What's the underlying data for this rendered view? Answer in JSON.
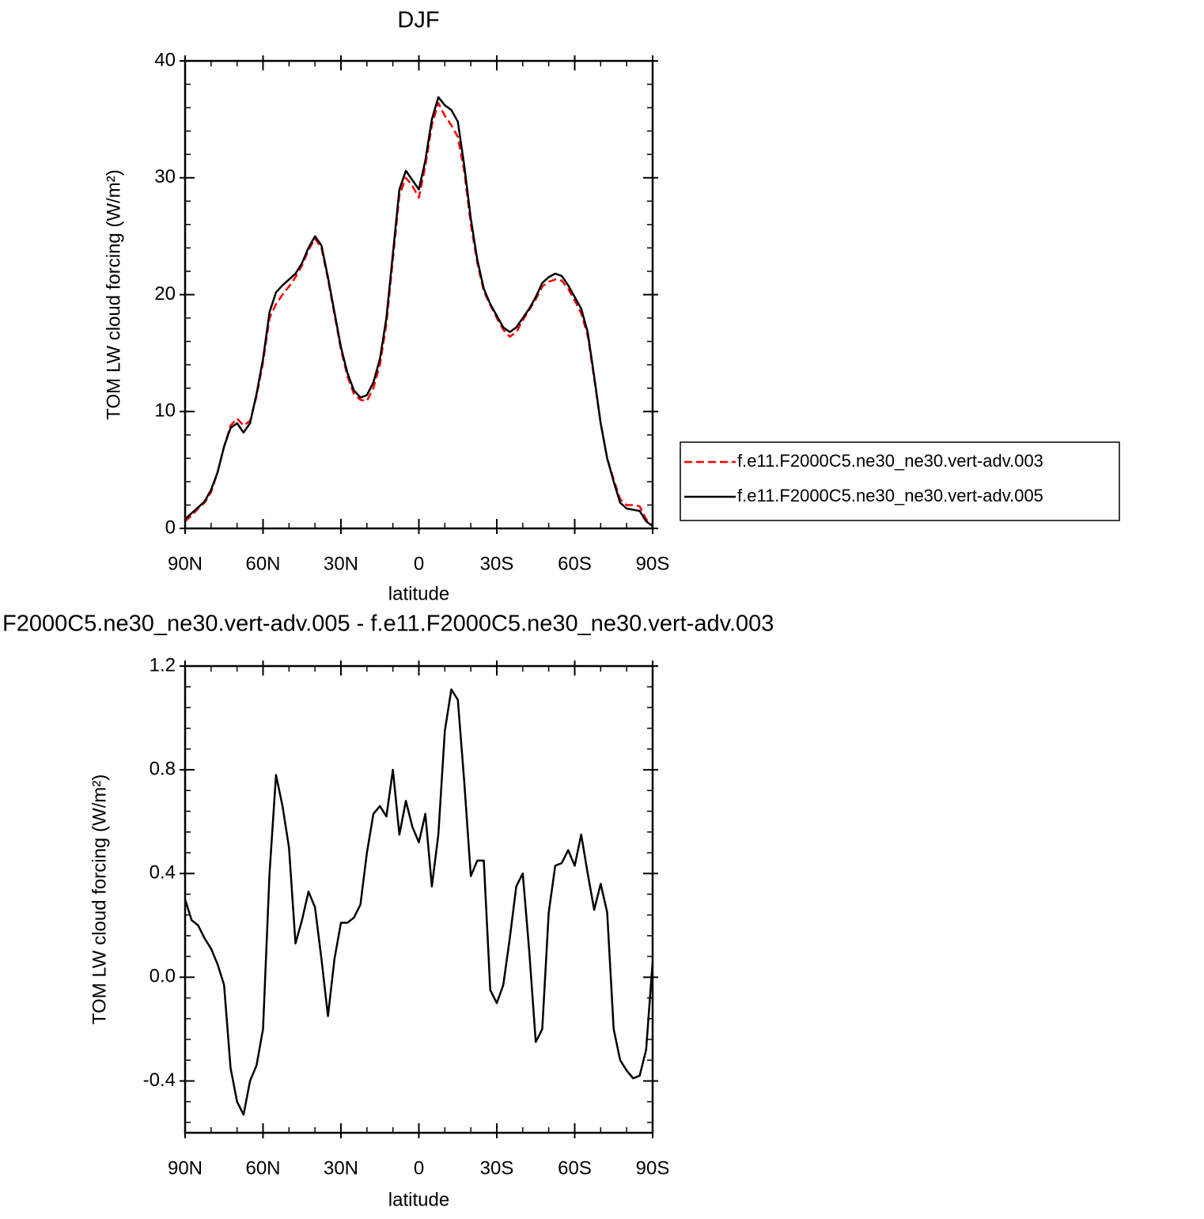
{
  "chart_data": [
    {
      "type": "line",
      "title": "DJF",
      "x_label": "latitude",
      "y_label": "TOM LW cloud forcing (W/m²)",
      "x": [
        90,
        87.5,
        85,
        82.5,
        80,
        77.5,
        75,
        72.5,
        70,
        67.5,
        65,
        62.5,
        60,
        57.5,
        55,
        52.5,
        50,
        47.5,
        45,
        42.5,
        40,
        37.5,
        35,
        32.5,
        30,
        27.5,
        25,
        22.5,
        20,
        17.5,
        15,
        12.5,
        10,
        7.5,
        5,
        2.5,
        0,
        -2.5,
        -5,
        -7.5,
        -10,
        -12.5,
        -15,
        -17.5,
        -20,
        -22.5,
        -25,
        -27.5,
        -30,
        -32.5,
        -35,
        -37.5,
        -40,
        -42.5,
        -45,
        -47.5,
        -50,
        -52.5,
        -55,
        -57.5,
        -60,
        -62.5,
        -65,
        -67.5,
        -70,
        -72.5,
        -75,
        -77.5,
        -80,
        -82.5,
        -85,
        -87.5,
        -90
      ],
      "xlim": [
        90,
        -90
      ],
      "xticks": [
        {
          "value": 90,
          "label": "90N"
        },
        {
          "value": 60,
          "label": "60N"
        },
        {
          "value": 30,
          "label": "30N"
        },
        0,
        {
          "value": -30,
          "label": "30S"
        },
        {
          "value": -60,
          "label": "60S"
        },
        {
          "value": -90,
          "label": "90S"
        }
      ],
      "ylim": [
        0,
        40
      ],
      "yticks": [
        0,
        10,
        20,
        30,
        40
      ],
      "legend": "right",
      "series": [
        {
          "name": "f.e11.F2000C5.ne30_ne30.vert-adv.003",
          "color": "#ff0000",
          "line_style": "dashed",
          "values": [
            0.6,
            1.1,
            1.7,
            2.2,
            3.1,
            4.8,
            7.0,
            8.8,
            9.4,
            8.8,
            9.2,
            11.3,
            14.2,
            18.0,
            19.2,
            20.0,
            20.7,
            21.5,
            22.5,
            23.8,
            24.8,
            24.0,
            21.3,
            18.3,
            15.3,
            13.0,
            11.5,
            11.0,
            10.9,
            12.0,
            14.0,
            17.5,
            23.0,
            28.5,
            30.0,
            29.3,
            28.3,
            31.0,
            34.5,
            36.4,
            35.3,
            34.5,
            33.5,
            30.5,
            26.0,
            22.7,
            20.3,
            19.1,
            18.0,
            17.0,
            16.4,
            16.8,
            17.8,
            18.7,
            19.6,
            20.7,
            21.1,
            21.3,
            21.2,
            20.5,
            19.5,
            18.4,
            16.5,
            12.8,
            9.0,
            6.0,
            4.2,
            2.5,
            2.0,
            2.0,
            1.9,
            0.8,
            0.2
          ]
        },
        {
          "name": "f.e11.F2000C5.ne30_ne30.vert-adv.005",
          "color": "#000000",
          "line_style": "solid",
          "values": [
            0.8,
            1.3,
            1.8,
            2.3,
            3.3,
            4.8,
            7.0,
            8.6,
            9.0,
            8.2,
            9.0,
            11.5,
            14.5,
            18.5,
            20.2,
            20.8,
            21.3,
            21.8,
            22.7,
            24.0,
            25.0,
            24.2,
            21.5,
            18.5,
            15.5,
            13.3,
            11.8,
            11.2,
            11.4,
            12.5,
            14.5,
            18.0,
            23.5,
            29.0,
            30.6,
            29.8,
            29.0,
            31.5,
            35.0,
            36.9,
            36.2,
            35.8,
            34.8,
            31.0,
            26.5,
            23.0,
            20.5,
            19.2,
            18.2,
            17.2,
            16.8,
            17.2,
            18.0,
            18.8,
            19.8,
            21.0,
            21.5,
            21.8,
            21.6,
            20.8,
            19.8,
            18.8,
            16.8,
            13.0,
            9.0,
            6.0,
            4.0,
            2.2,
            1.7,
            1.6,
            1.5,
            0.6,
            0.2
          ]
        }
      ]
    },
    {
      "type": "line",
      "title": "F2000C5.ne30_ne30.vert-adv.005 - f.e11.F2000C5.ne30_ne30.vert-adv.003",
      "x_label": "latitude",
      "y_label": "TOM LW cloud forcing (W/m²)",
      "x": [
        90,
        87.5,
        85,
        82.5,
        80,
        77.5,
        75,
        72.5,
        70,
        67.5,
        65,
        62.5,
        60,
        57.5,
        55,
        52.5,
        50,
        47.5,
        45,
        42.5,
        40,
        37.5,
        35,
        32.5,
        30,
        27.5,
        25,
        22.5,
        20,
        17.5,
        15,
        12.5,
        10,
        7.5,
        5,
        2.5,
        0,
        -2.5,
        -5,
        -7.5,
        -10,
        -12.5,
        -15,
        -17.5,
        -20,
        -22.5,
        -25,
        -27.5,
        -30,
        -32.5,
        -35,
        -37.5,
        -40,
        -42.5,
        -45,
        -47.5,
        -50,
        -52.5,
        -55,
        -57.5,
        -60,
        -62.5,
        -65,
        -67.5,
        -70,
        -72.5,
        -75,
        -77.5,
        -80,
        -82.5,
        -85,
        -87.5,
        -90
      ],
      "xlim": [
        90,
        -90
      ],
      "xticks": [
        {
          "value": 90,
          "label": "90N"
        },
        {
          "value": 60,
          "label": "60N"
        },
        {
          "value": 30,
          "label": "30N"
        },
        0,
        {
          "value": -30,
          "label": "30S"
        },
        {
          "value": -60,
          "label": "60S"
        },
        {
          "value": -90,
          "label": "90S"
        }
      ],
      "ylim": [
        -0.6,
        1.2
      ],
      "yticks": [
        -0.4,
        {
          "value": 0,
          "label": "0.0"
        },
        0.4,
        0.8,
        1.2
      ],
      "series": [
        {
          "color": "#000000",
          "line_style": "solid",
          "values": [
            0.3,
            0.22,
            0.2,
            0.15,
            0.11,
            0.05,
            -0.03,
            -0.35,
            -0.48,
            -0.53,
            -0.4,
            -0.34,
            -0.2,
            0.4,
            0.78,
            0.66,
            0.5,
            0.13,
            0.22,
            0.33,
            0.27,
            0.07,
            -0.15,
            0.07,
            0.21,
            0.21,
            0.23,
            0.28,
            0.48,
            0.63,
            0.66,
            0.62,
            0.8,
            0.55,
            0.68,
            0.58,
            0.52,
            0.63,
            0.35,
            0.55,
            0.95,
            1.11,
            1.07,
            0.75,
            0.39,
            0.45,
            0.45,
            -0.05,
            -0.1,
            -0.03,
            0.15,
            0.35,
            0.4,
            0.1,
            -0.25,
            -0.2,
            0.25,
            0.43,
            0.44,
            0.49,
            0.43,
            0.55,
            0.4,
            0.26,
            0.36,
            0.25,
            -0.2,
            -0.32,
            -0.36,
            -0.39,
            -0.38,
            -0.28,
            0.06
          ]
        }
      ]
    }
  ]
}
